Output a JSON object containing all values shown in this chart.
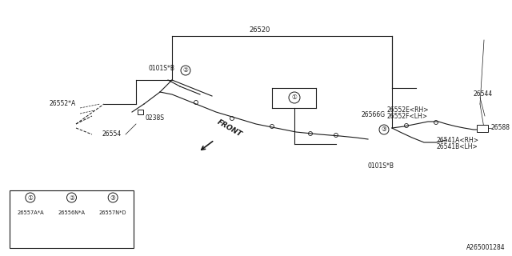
{
  "bg_color": "#ffffff",
  "line_color": "#1a1a1a",
  "title": "A265001284",
  "part_number_26520": "26520",
  "part_number_26552A": "26552*A",
  "part_number_0101SB_1": "0101S*B",
  "part_number_0238S": "0238S",
  "part_number_26554": "26554",
  "part_number_26544": "26544",
  "part_number_26566G": "26566G",
  "part_number_26552E": "26552E<RH>",
  "part_number_26552F": "26552F<LH>",
  "part_number_26588": "26588",
  "part_number_26541A": "26541A<RH>",
  "part_number_26541B": "26541B<LH>",
  "part_number_0101SB_2": "0101S*B",
  "front_label": "FRONT",
  "table_labels": [
    "①",
    "②",
    "③"
  ],
  "table_parts": [
    "26557A*A",
    "26556N*A",
    "26557N*D"
  ],
  "circle1_label": "①",
  "circle2_label": "②",
  "circle3_label": "③"
}
